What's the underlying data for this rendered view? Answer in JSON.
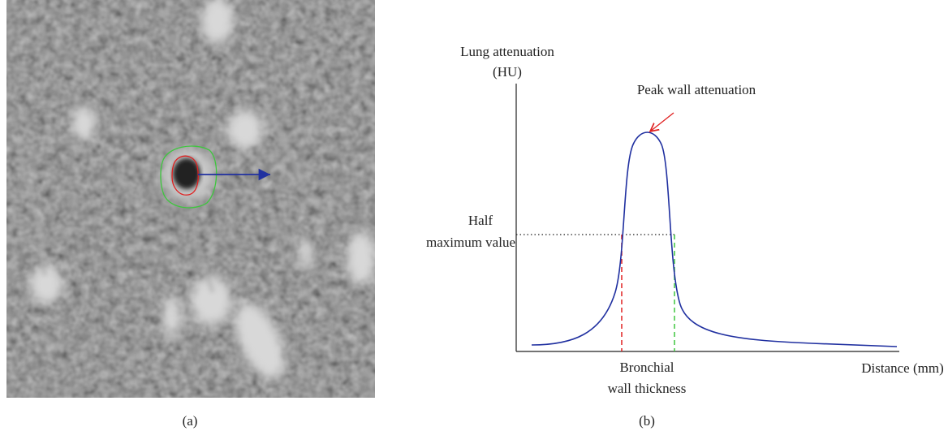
{
  "panel_a": {
    "label": "(a)"
  },
  "panel_b": {
    "label": "(b)",
    "y_axis_label": [
      "Lung attenuation",
      "(HU)"
    ],
    "peak_annotation": "Peak wall attenuation",
    "half_max_label": [
      "Half",
      "maximum value"
    ],
    "thickness_label": [
      "Bronchial",
      "wall thickness"
    ],
    "x_axis_label": "Distance (mm)"
  }
}
